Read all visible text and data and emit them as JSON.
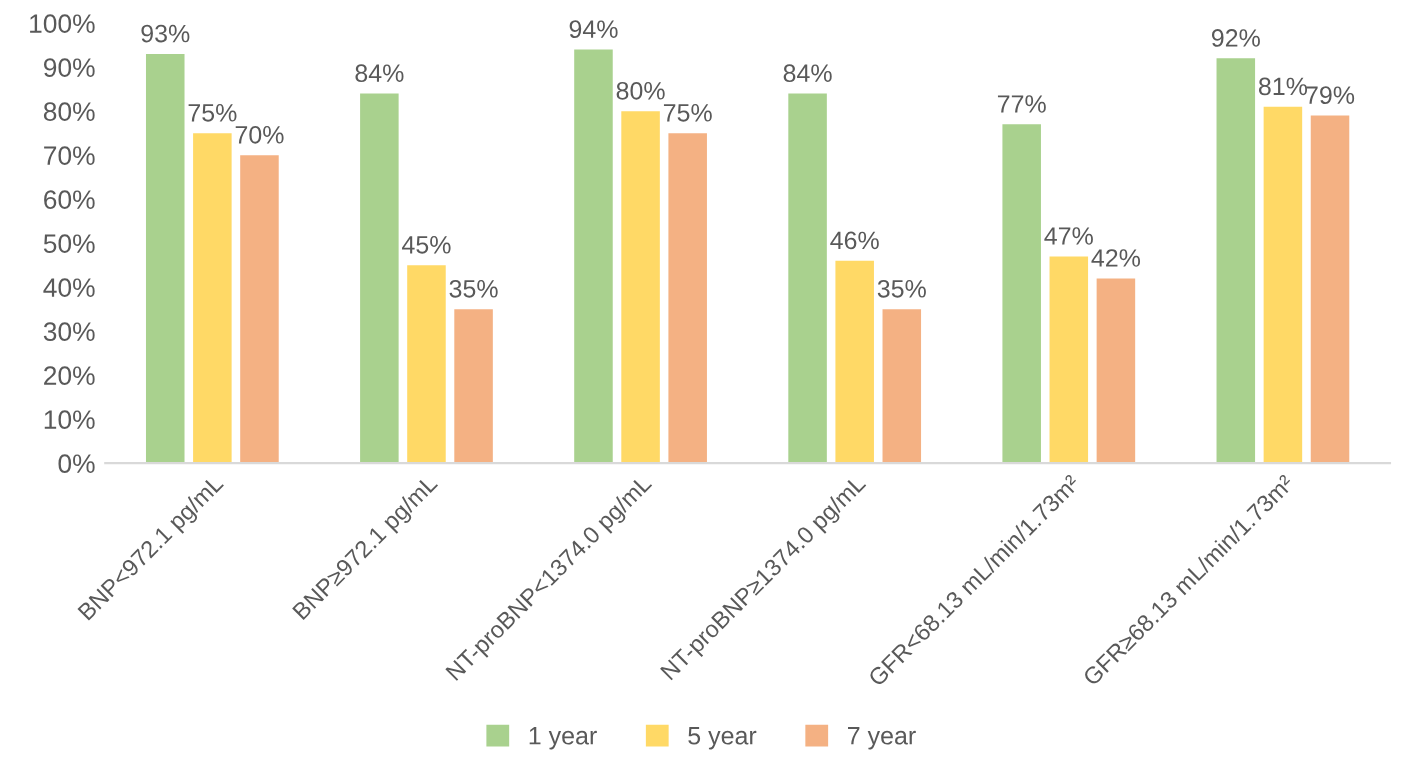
{
  "chart_data": {
    "type": "bar",
    "categories": [
      "BNP<972.1 pg/mL",
      "BNP≥972.1 pg/mL",
      "NT-proBNP<1374.0 pg/mL",
      "NT-proBNP≥1374.0 pg/mL",
      "GFR<68.13 mL/min/1.73m²",
      "GFR≥68.13 mL/min/1.73m²"
    ],
    "series": [
      {
        "name": "1 year",
        "color": "#a9d18e",
        "values": [
          93,
          84,
          94,
          84,
          77,
          92
        ],
        "value_labels": [
          "93%",
          "84%",
          "94%",
          "84%",
          "77%",
          "92%"
        ]
      },
      {
        "name": "5 year",
        "color": "#ffd966",
        "values": [
          75,
          45,
          80,
          46,
          47,
          81
        ],
        "value_labels": [
          "75%",
          "45%",
          "80%",
          "46%",
          "47%",
          "81%"
        ]
      },
      {
        "name": "7 year",
        "color": "#f4b183",
        "values": [
          70,
          35,
          75,
          35,
          42,
          79
        ],
        "value_labels": [
          "70%",
          "35%",
          "75%",
          "35%",
          "42%",
          "79%"
        ]
      }
    ],
    "ylim": [
      0,
      100
    ],
    "yticks": [
      {
        "value": 0,
        "label": "0%"
      },
      {
        "value": 10,
        "label": "10%"
      },
      {
        "value": 20,
        "label": "20%"
      },
      {
        "value": 30,
        "label": "30%"
      },
      {
        "value": 40,
        "label": "40%"
      },
      {
        "value": 50,
        "label": "50%"
      },
      {
        "value": 60,
        "label": "60%"
      },
      {
        "value": 70,
        "label": "70%"
      },
      {
        "value": 80,
        "label": "80%"
      },
      {
        "value": 90,
        "label": "90%"
      },
      {
        "value": 100,
        "label": "100%"
      }
    ],
    "legend": "bottom"
  }
}
